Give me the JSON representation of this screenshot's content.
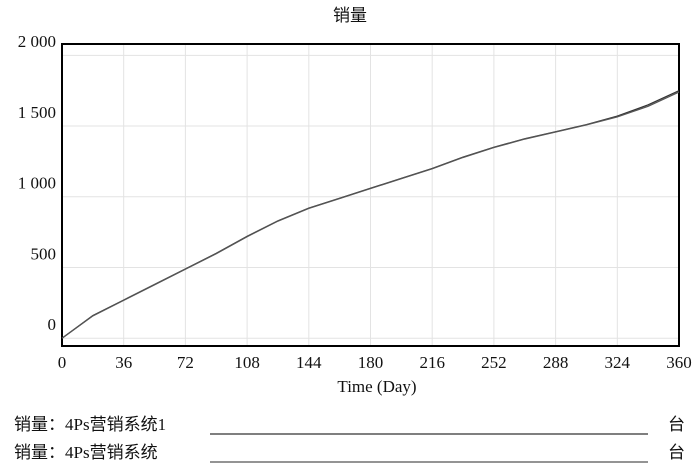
{
  "chart_data": {
    "type": "line",
    "title": "销量",
    "x_label": "Time (Day)",
    "x": [
      0,
      18,
      36,
      54,
      72,
      90,
      108,
      126,
      144,
      162,
      180,
      198,
      216,
      234,
      252,
      270,
      288,
      306,
      324,
      342,
      360
    ],
    "series": [
      {
        "name": "销量：4Ps营销系统1",
        "unit": "台",
        "color": "#333333",
        "values": [
          0,
          160,
          270,
          380,
          490,
          600,
          720,
          830,
          920,
          990,
          1060,
          1130,
          1200,
          1280,
          1350,
          1410,
          1460,
          1510,
          1570,
          1650,
          1750
        ]
      },
      {
        "name": "销量：4Ps营销系统",
        "unit": "台",
        "color": "#555555",
        "values": [
          0,
          158,
          268,
          378,
          488,
          598,
          718,
          828,
          918,
          988,
          1058,
          1128,
          1198,
          1278,
          1348,
          1408,
          1458,
          1508,
          1565,
          1640,
          1740
        ]
      }
    ],
    "xlim": [
      0,
      360
    ],
    "xticks": [
      0,
      36,
      72,
      108,
      144,
      180,
      216,
      252,
      288,
      324,
      360
    ],
    "ylim": [
      -55,
      2080
    ],
    "yticks": [
      0,
      500,
      {
        "value": 1000,
        "label": "1 000"
      },
      {
        "value": 1500,
        "label": "1 500"
      },
      {
        "value": 2000,
        "label": "2 000"
      }
    ],
    "grid": true
  }
}
